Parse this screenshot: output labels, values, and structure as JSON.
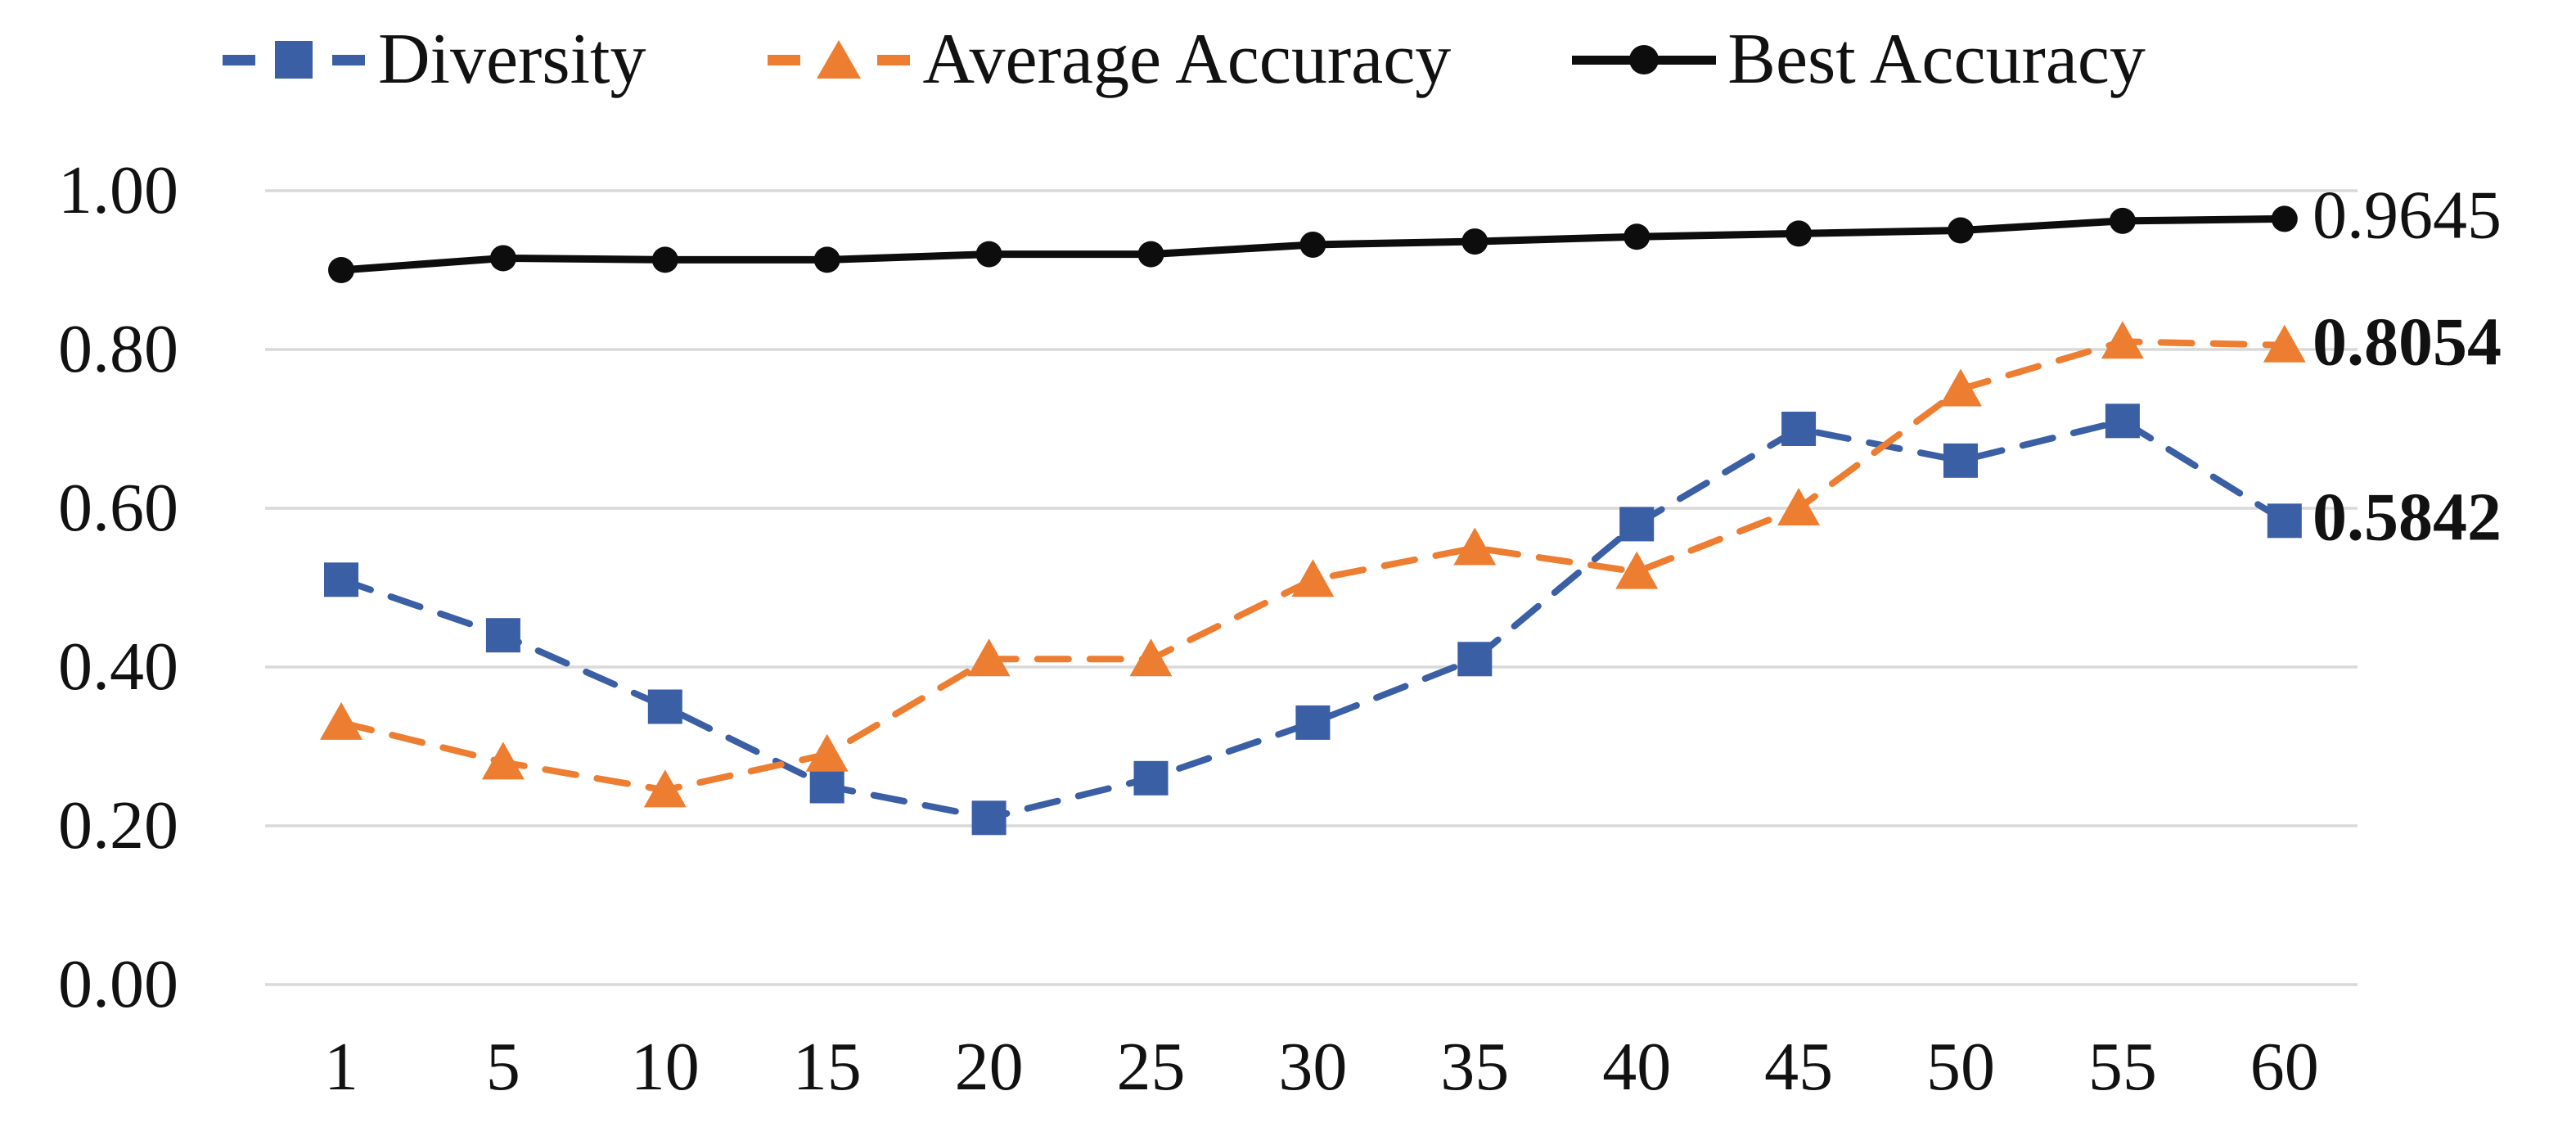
{
  "chart_data": {
    "type": "line",
    "title": "",
    "categories": [
      1,
      5,
      10,
      15,
      20,
      25,
      30,
      35,
      40,
      45,
      50,
      55,
      60
    ],
    "series": [
      {
        "name": "Diversity",
        "color": "#3a5fa5",
        "marker": "square",
        "dashed": true,
        "values": [
          0.51,
          0.44,
          0.35,
          0.25,
          0.21,
          0.26,
          0.33,
          0.41,
          0.58,
          0.7,
          0.66,
          0.71,
          0.5842
        ],
        "end_label": "0.5842",
        "end_label_bold": true
      },
      {
        "name": "Average Accuracy",
        "color": "#ed7d31",
        "marker": "triangle",
        "dashed": true,
        "values": [
          0.33,
          0.28,
          0.245,
          0.29,
          0.41,
          0.41,
          0.51,
          0.55,
          0.52,
          0.6,
          0.75,
          0.81,
          0.8054
        ],
        "end_label": "0.8054",
        "end_label_bold": true
      },
      {
        "name": "Best Accuracy",
        "color": "#0d0d0d",
        "marker": "circle",
        "dashed": false,
        "values": [
          0.9,
          0.915,
          0.913,
          0.913,
          0.92,
          0.92,
          0.932,
          0.936,
          0.942,
          0.946,
          0.95,
          0.962,
          0.9645
        ],
        "end_label": "0.9645",
        "end_label_bold": false
      }
    ],
    "x_axis": {
      "tick_labels": [
        "1",
        "5",
        "10",
        "15",
        "20",
        "25",
        "30",
        "35",
        "40",
        "45",
        "50",
        "55",
        "60"
      ]
    },
    "y_axis": {
      "tick_labels": [
        "1.00",
        "0.80",
        "0.60",
        "0.40",
        "0.20",
        "0.00"
      ],
      "tick_values": [
        1.0,
        0.8,
        0.6,
        0.4,
        0.2,
        0.0
      ],
      "min": 0.0,
      "max": 1.0
    },
    "grid": true,
    "gridline_color": "#d9d9d9",
    "legend_position": "top",
    "background": "#ffffff"
  }
}
